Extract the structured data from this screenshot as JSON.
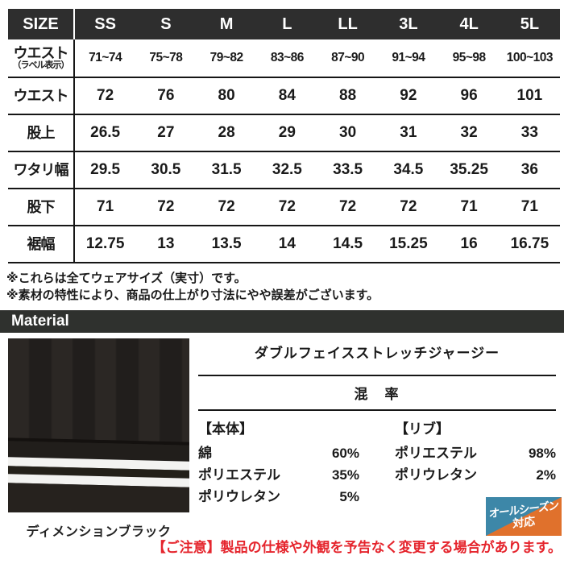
{
  "size_table": {
    "header": [
      "SIZE",
      "SS",
      "S",
      "M",
      "L",
      "LL",
      "3L",
      "4L",
      "5L"
    ],
    "rows": [
      {
        "label": "ウエスト",
        "sublabel": "（ラベル表示）",
        "values": [
          "71~74",
          "75~78",
          "79~82",
          "83~86",
          "87~90",
          "91~94",
          "95~98",
          "100~103"
        ]
      },
      {
        "label": "ウエスト",
        "sublabel": "",
        "values": [
          "72",
          "76",
          "80",
          "84",
          "88",
          "92",
          "96",
          "101"
        ]
      },
      {
        "label": "股上",
        "sublabel": "",
        "values": [
          "26.5",
          "27",
          "28",
          "29",
          "30",
          "31",
          "32",
          "33"
        ]
      },
      {
        "label": "ワタリ幅",
        "sublabel": "",
        "values": [
          "29.5",
          "30.5",
          "31.5",
          "32.5",
          "33.5",
          "34.5",
          "35.25",
          "36"
        ]
      },
      {
        "label": "股下",
        "sublabel": "",
        "values": [
          "71",
          "72",
          "72",
          "72",
          "72",
          "72",
          "71",
          "71"
        ]
      },
      {
        "label": "裾幅",
        "sublabel": "",
        "values": [
          "12.75",
          "13",
          "13.5",
          "14",
          "14.5",
          "15.25",
          "16",
          "16.75"
        ]
      }
    ]
  },
  "notes": {
    "line1": "※これらは全てウェアサイズ（実寸）です。",
    "line2": "※素材の特性により、商品の仕上がり寸法にやや誤差がございます。"
  },
  "material": {
    "section_title": "Material",
    "fabric_name": "ダブルフェイスストレッチジャージー",
    "blend_title": "混　率",
    "body_part": "【本体】",
    "body_components": [
      {
        "name": "綿",
        "pct": "60%"
      },
      {
        "name": "ポリエステル",
        "pct": "35%"
      },
      {
        "name": "ポリウレタン",
        "pct": "5%"
      }
    ],
    "rib_part": "【リブ】",
    "rib_components": [
      {
        "name": "ポリエステル",
        "pct": "98%"
      },
      {
        "name": "ポリウレタン",
        "pct": "2%"
      }
    ],
    "color_name": "ディメンションブラック"
  },
  "badge": {
    "line1": "オールシーズン",
    "line2": "対応"
  },
  "caution": "【ご注意】製品の仕様や外観を予告なく変更する場合があります。",
  "colors": {
    "table_header_bg": "#2e2e2e",
    "material_bar_bg": "#2f312e",
    "badge_blue": "#3d87a8",
    "badge_orange": "#e0712c",
    "caution_red": "#e5252d",
    "fabric_black": "#282522",
    "stripe_white": "#f3f3f1"
  }
}
